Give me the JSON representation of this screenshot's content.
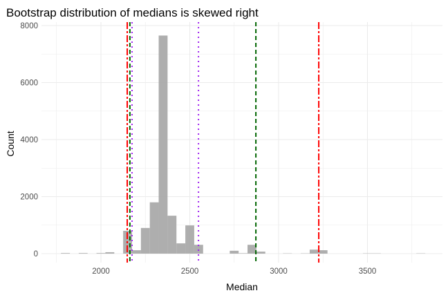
{
  "chart_data": {
    "type": "bar",
    "title": "Bootstrap distribution of medians is skewed right",
    "xlabel": "Median",
    "ylabel": "Count",
    "xlim": [
      1750,
      3900
    ],
    "ylim": [
      0,
      8000
    ],
    "xticks": [
      2000,
      2500,
      3000,
      3500
    ],
    "yticks": [
      0,
      2000,
      4000,
      6000,
      8000
    ],
    "bin_width": 50,
    "bins": [
      {
        "center": 1800,
        "count": 20
      },
      {
        "center": 1900,
        "count": 20
      },
      {
        "center": 2000,
        "count": 20
      },
      {
        "center": 2050,
        "count": 50
      },
      {
        "center": 2150,
        "count": 800
      },
      {
        "center": 2200,
        "count": 120
      },
      {
        "center": 2250,
        "count": 900
      },
      {
        "center": 2300,
        "count": 1800
      },
      {
        "center": 2350,
        "count": 7650
      },
      {
        "center": 2400,
        "count": 1330
      },
      {
        "center": 2450,
        "count": 360
      },
      {
        "center": 2500,
        "count": 990
      },
      {
        "center": 2550,
        "count": 310
      },
      {
        "center": 2750,
        "count": 100
      },
      {
        "center": 2800,
        "count": 15
      },
      {
        "center": 2850,
        "count": 310
      },
      {
        "center": 2900,
        "count": 70
      },
      {
        "center": 3050,
        "count": 10
      },
      {
        "center": 3150,
        "count": 10
      },
      {
        "center": 3200,
        "count": 140
      },
      {
        "center": 3250,
        "count": 120
      },
      {
        "center": 3500,
        "count": 10
      },
      {
        "center": 3550,
        "count": 10
      },
      {
        "center": 3800,
        "count": 10
      }
    ],
    "bar_color": "#aaaaaa",
    "vlines": [
      {
        "x": 2148,
        "color": "#ff0000",
        "style": "dashdot"
      },
      {
        "x": 2163,
        "color": "#006400",
        "style": "dashed"
      },
      {
        "x": 2175,
        "color": "#a020f0",
        "style": "dotted"
      },
      {
        "x": 2549,
        "color": "#a020f0",
        "style": "dotted"
      },
      {
        "x": 2872,
        "color": "#006400",
        "style": "dashed"
      },
      {
        "x": 3226,
        "color": "#ff0000",
        "style": "dashdot"
      }
    ],
    "grid": true
  }
}
